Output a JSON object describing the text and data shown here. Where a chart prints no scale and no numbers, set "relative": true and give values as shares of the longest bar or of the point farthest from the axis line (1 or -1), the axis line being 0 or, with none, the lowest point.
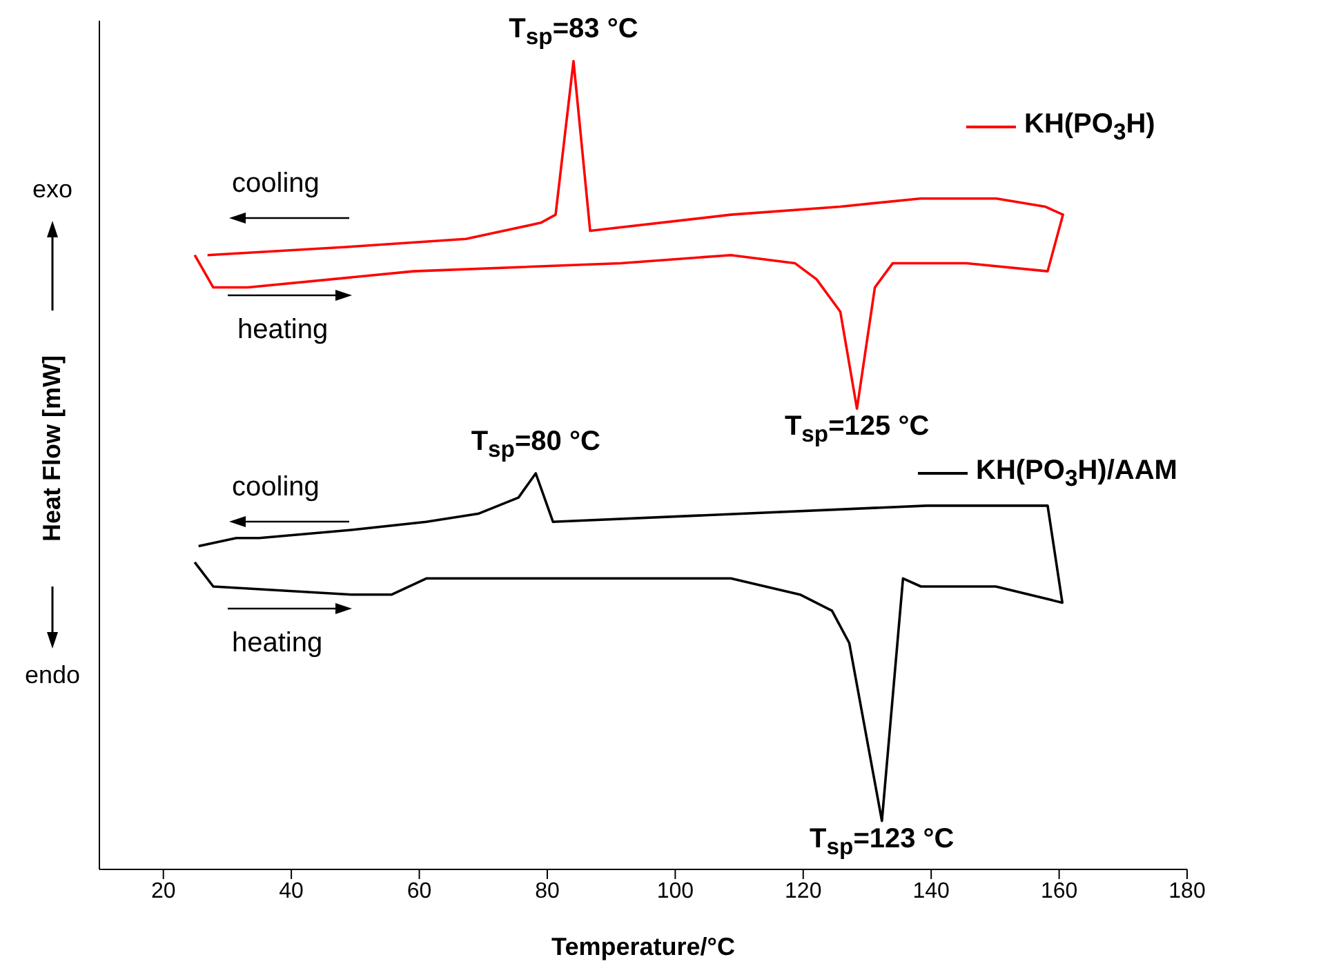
{
  "chart_data": {
    "type": "line",
    "xlabel": "Temperature/°C",
    "ylabel": "Heat Flow [mW]",
    "relative": true,
    "xlim": [
      10,
      180
    ],
    "xticks": [
      20,
      40,
      60,
      80,
      100,
      120,
      140,
      160,
      180
    ],
    "legend": "right",
    "series": [
      {
        "name": "KH(PO$_{3}$H)",
        "color": "#ff0000",
        "x": [
          24.9,
          27.8,
          33.2,
          59.1,
          91.5,
          108.7,
          118.7,
          122.1,
          125.8,
          128.4,
          131.2,
          134.0,
          145.5,
          158.2,
          160.6,
          157.8,
          150.2,
          138.3,
          125.8,
          108.7,
          86.7,
          84.1,
          81.3,
          79.0,
          67.3,
          48.5,
          26.9
        ],
        "values": [
          0.76,
          0.72,
          0.72,
          0.74,
          0.75,
          0.76,
          0.75,
          0.73,
          0.69,
          0.57,
          0.72,
          0.75,
          0.75,
          0.74,
          0.81,
          0.82,
          0.83,
          0.83,
          0.82,
          0.81,
          0.79,
          1.0,
          0.81,
          0.8,
          0.78,
          0.77,
          0.76
        ]
      },
      {
        "name": "KH(PO$_{3}$H)/AAM",
        "color": "#000000",
        "x": [
          24.9,
          27.8,
          49.4,
          53.9,
          55.7,
          61.1,
          67.4,
          108.7,
          119.5,
          124.5,
          127.2,
          132.3,
          135.6,
          138.4,
          143.8,
          150.1,
          160.5,
          158.2,
          139.3,
          80.9,
          78.2,
          75.5,
          69.2,
          61.1,
          49.4,
          35.0,
          31.4,
          25.5
        ],
        "values": [
          0.38,
          0.35,
          0.34,
          0.34,
          0.34,
          0.36,
          0.36,
          0.36,
          0.34,
          0.32,
          0.28,
          0.06,
          0.36,
          0.35,
          0.35,
          0.35,
          0.33,
          0.45,
          0.45,
          0.43,
          0.49,
          0.46,
          0.44,
          0.43,
          0.42,
          0.41,
          0.41,
          0.4
        ]
      }
    ],
    "annotations": [
      {
        "text": "T$_{sp}$=83 °C",
        "x": 84.1,
        "y": 1.0
      },
      {
        "text": "T$_{sp}$=125 °C",
        "x": 128.4,
        "y": 0.57
      },
      {
        "text": "T$_{sp}$=80 °C",
        "x": 78.2,
        "y": 0.49
      },
      {
        "text": "T$_{sp}$=123 °C",
        "x": 132.3,
        "y": 0.06
      },
      "cooling",
      "heating",
      "cooling",
      "heating",
      "exo",
      "endo"
    ]
  }
}
